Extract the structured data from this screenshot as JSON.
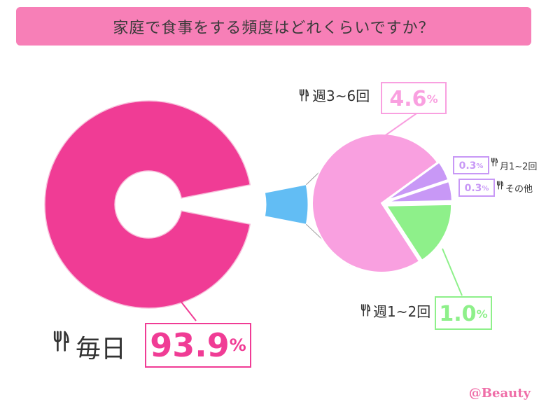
{
  "title": "家庭で食事をする頻度はどれくらいですか？",
  "brand": "@Beauty",
  "colors": {
    "primary": "#f03c95",
    "sub": "#f9a0e0",
    "sub_outline": "#f9a0e0",
    "weekly1": "#8ef08a",
    "weekly1_outline": "#8ef08a",
    "monthly": "#c898f6",
    "other": "#c898f6",
    "connector": "#62bdf4"
  },
  "chart_data": {
    "type": "pie",
    "main": {
      "slices": [
        {
          "label": "毎日",
          "value": 93.9,
          "unit": "%",
          "color": "#f03c95"
        },
        {
          "label": "",
          "value": 6.1,
          "color": "#62bdf4"
        }
      ]
    },
    "breakdown": {
      "slices": [
        {
          "label": "週3~6回",
          "value": 4.6,
          "unit": "%",
          "color": "#f9a0e0"
        },
        {
          "label": "月1~2回",
          "value": 0.3,
          "unit": "%",
          "color": "#c898f6"
        },
        {
          "label": "その他",
          "value": 0.3,
          "unit": "%",
          "color": "#c898f6"
        },
        {
          "label": "週1~2回",
          "value": 1.0,
          "unit": "%",
          "color": "#8ef08a"
        }
      ]
    }
  }
}
